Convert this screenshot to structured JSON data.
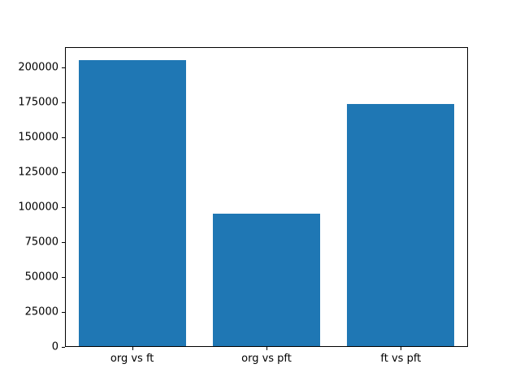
{
  "chart_data": {
    "type": "bar",
    "categories": [
      "org vs ft",
      "org vs pft",
      "ft vs pft"
    ],
    "values": [
      204500,
      95000,
      173000
    ],
    "title": "",
    "xlabel": "",
    "ylabel": "",
    "ylim": [
      0,
      214500
    ],
    "yticks": [
      0,
      25000,
      50000,
      75000,
      100000,
      125000,
      150000,
      175000,
      200000
    ],
    "bar_color": "#1f77b4",
    "bar_width_fraction": 0.8,
    "grid": "off",
    "legend": "none",
    "spine_color": "#000000",
    "background_color": "#ffffff"
  }
}
